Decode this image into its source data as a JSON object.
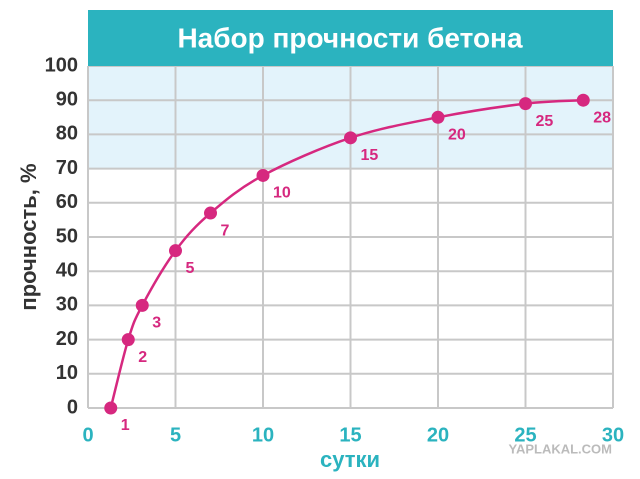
{
  "chart_data": {
    "type": "line",
    "title": "Набор прочности бетона",
    "x_label": "сутки",
    "y_label": "прочность, %",
    "x": [
      1.3,
      2.3,
      3.1,
      5,
      7,
      10,
      15,
      20,
      25,
      28.3
    ],
    "series": [
      {
        "name": null,
        "color": "#d6287f",
        "values": [
          0,
          20,
          30,
          46,
          57,
          68,
          79,
          85,
          89,
          90
        ],
        "point_labels": [
          "1",
          "2",
          "3",
          "5",
          "7",
          "10",
          "15",
          "20",
          "25",
          "28"
        ]
      }
    ],
    "xlim": [
      0,
      30
    ],
    "xticks": [
      0,
      5,
      10,
      15,
      20,
      25,
      30
    ],
    "ylim": [
      0,
      100
    ],
    "yticks": [
      0,
      10,
      20,
      30,
      40,
      50,
      60,
      70,
      80,
      90,
      100
    ],
    "grid": true,
    "shaded_range": [
      70,
      100
    ],
    "shade_color": "#e3f3fb",
    "header_color": "#2bb3bf",
    "watermark": "YAPLAKAL.COM"
  }
}
